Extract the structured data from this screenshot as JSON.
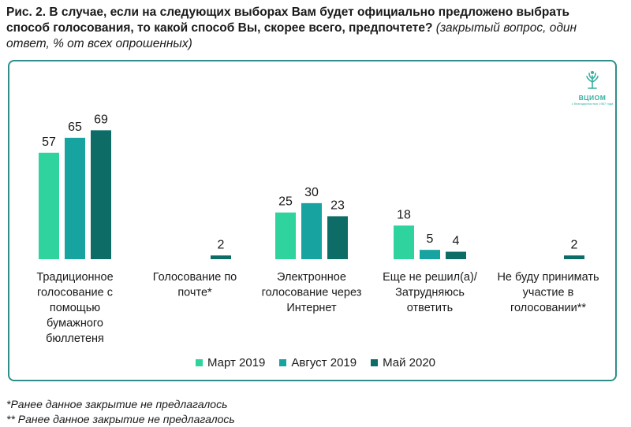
{
  "header": {
    "title_bold": "Рис. 2. В случае, если на следующих выборах Вам будет официально предложено выбрать способ голосования, то какой способ Вы, скорее всего, предпочтете?",
    "title_italic": "(закрытый вопрос, один ответ, % от всех опрошенных)"
  },
  "logo": {
    "name": "ВЦИОМ",
    "sub": "с благодарностью 1987 года"
  },
  "colors": {
    "series1": "#2fd39e",
    "series2": "#17a4a0",
    "series3": "#0d6d66",
    "frame": "#2e8f8a"
  },
  "chart_data": {
    "type": "bar",
    "categories": [
      "Традиционное голосование с помощью бумажного бюллетеня",
      "Голосование по почте*",
      "Электронное голосование через Интернет",
      "Еще не решил(а)/ Затрудняюсь ответить",
      "Не буду принимать участие в голосовании**"
    ],
    "category_lines": [
      [
        "Традиционное",
        "голосование с",
        "помощью",
        "бумажного",
        "бюллетеня"
      ],
      [
        "Голосование по",
        "почте*"
      ],
      [
        "Электронное",
        "голосование через",
        "Интернет"
      ],
      [
        "Еще не решил(а)/",
        "Затрудняюсь",
        "ответить"
      ],
      [
        "Не буду принимать",
        "участие в",
        "голосовании**"
      ]
    ],
    "series": [
      {
        "name": "Март 2019",
        "values": [
          57,
          null,
          25,
          18,
          null
        ]
      },
      {
        "name": "Август 2019",
        "values": [
          65,
          null,
          30,
          5,
          null
        ]
      },
      {
        "name": "Май 2020",
        "values": [
          69,
          2,
          23,
          4,
          2
        ]
      }
    ],
    "ylim": [
      0,
      70
    ],
    "grid": false,
    "legend_position": "bottom"
  },
  "footnotes": [
    "*Ранее данное закрытие не предлагалось",
    "** Ранее данное закрытие не предлагалось"
  ]
}
